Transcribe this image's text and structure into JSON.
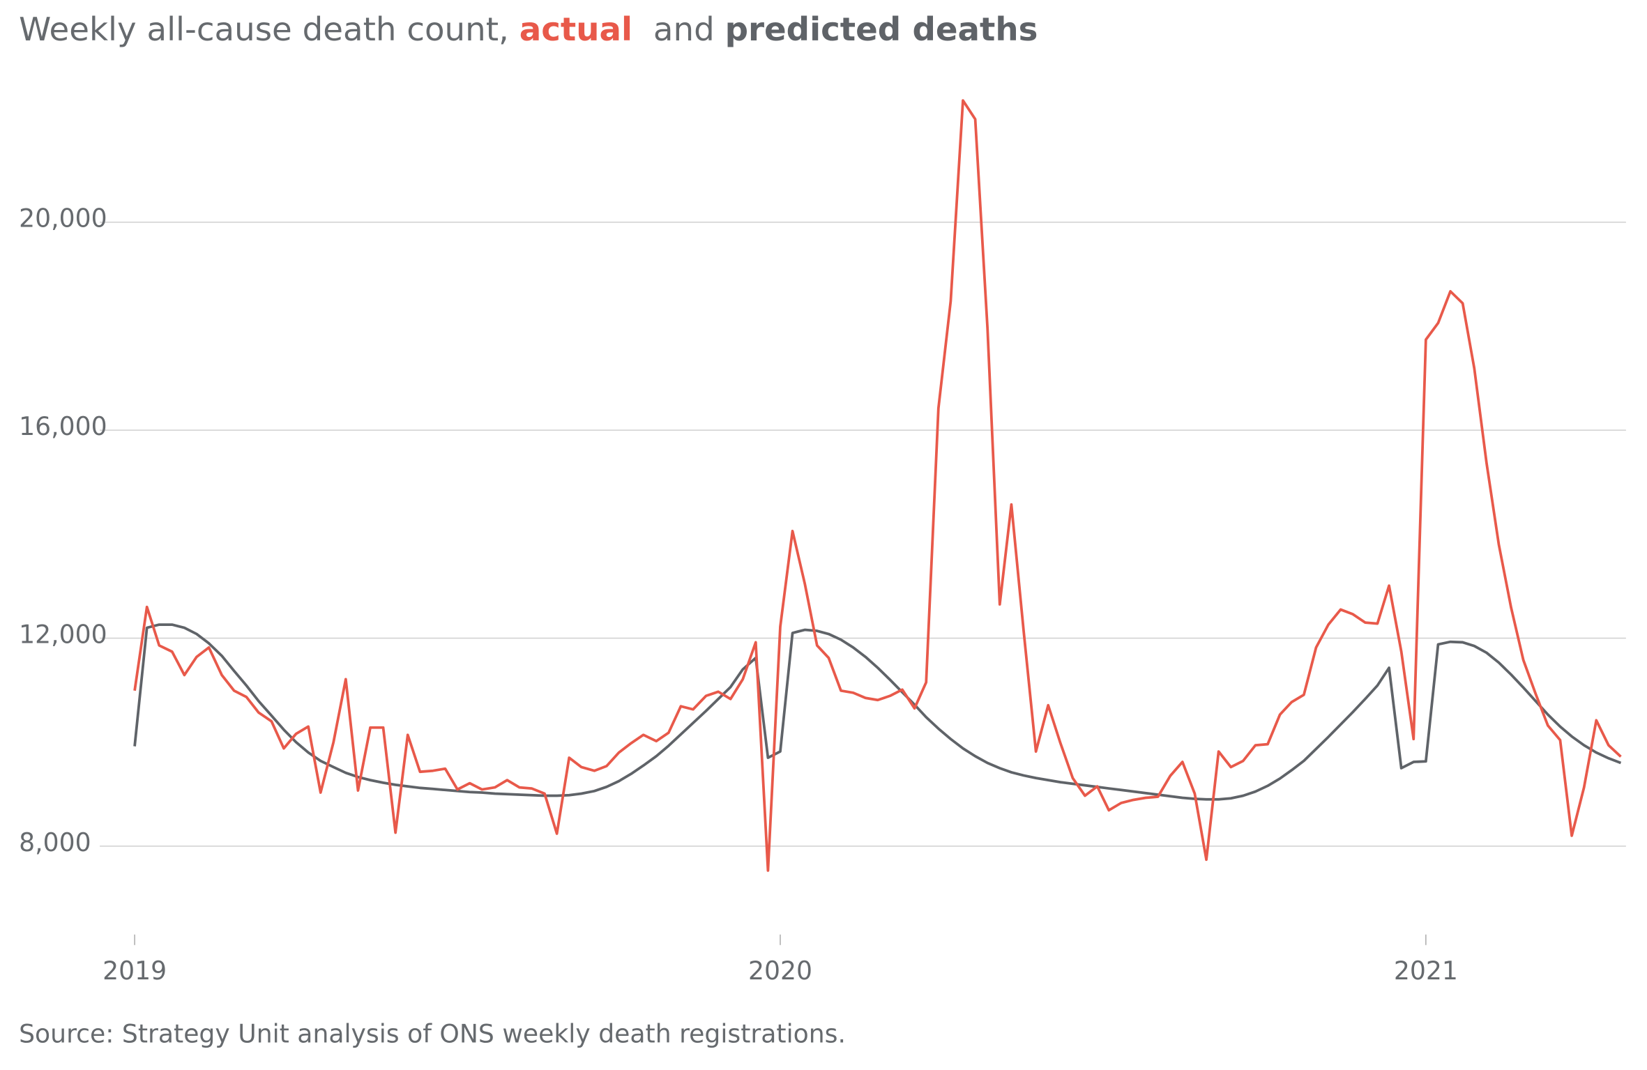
{
  "chart_data": {
    "type": "line",
    "title": "Weekly all-cause death count,",
    "title_joiner": "and",
    "source": "Source: Strategy Unit analysis of ONS weekly death registrations.",
    "x": [
      2019.0,
      2019.019,
      2019.038,
      2019.058,
      2019.077,
      2019.096,
      2019.115,
      2019.135,
      2019.154,
      2019.173,
      2019.192,
      2019.212,
      2019.231,
      2019.25,
      2019.269,
      2019.288,
      2019.308,
      2019.327,
      2019.346,
      2019.365,
      2019.385,
      2019.404,
      2019.423,
      2019.442,
      2019.462,
      2019.481,
      2019.5,
      2019.519,
      2019.538,
      2019.558,
      2019.577,
      2019.596,
      2019.615,
      2019.635,
      2019.654,
      2019.673,
      2019.692,
      2019.712,
      2019.731,
      2019.75,
      2019.769,
      2019.788,
      2019.808,
      2019.827,
      2019.846,
      2019.865,
      2019.885,
      2019.904,
      2019.923,
      2019.942,
      2019.962,
      2019.981,
      2020.0,
      2020.019,
      2020.038,
      2020.057,
      2020.075,
      2020.094,
      2020.113,
      2020.132,
      2020.151,
      2020.17,
      2020.189,
      2020.208,
      2020.226,
      2020.245,
      2020.264,
      2020.283,
      2020.302,
      2020.321,
      2020.34,
      2020.358,
      2020.377,
      2020.396,
      2020.415,
      2020.434,
      2020.453,
      2020.472,
      2020.491,
      2020.509,
      2020.528,
      2020.547,
      2020.566,
      2020.585,
      2020.604,
      2020.623,
      2020.642,
      2020.66,
      2020.679,
      2020.698,
      2020.717,
      2020.736,
      2020.755,
      2020.774,
      2020.792,
      2020.811,
      2020.83,
      2020.849,
      2020.868,
      2020.887,
      2020.906,
      2020.925,
      2020.943,
      2020.962,
      2020.981,
      2021.0,
      2021.019,
      2021.038,
      2021.057,
      2021.075,
      2021.094,
      2021.113,
      2021.132,
      2021.151,
      2021.17,
      2021.189,
      2021.208,
      2021.226,
      2021.245,
      2021.264,
      2021.283,
      2021.302
    ],
    "series": [
      {
        "name": "actual",
        "color": "#e8594a",
        "values": [
          10990,
          12600,
          11860,
          11740,
          11290,
          11640,
          11820,
          11290,
          10990,
          10870,
          10570,
          10400,
          9880,
          10160,
          10300,
          9030,
          10000,
          11210,
          9070,
          10280,
          10280,
          8260,
          10140,
          9430,
          9450,
          9490,
          9090,
          9210,
          9090,
          9130,
          9270,
          9130,
          9110,
          9010,
          8240,
          9700,
          9520,
          9450,
          9540,
          9800,
          9980,
          10140,
          10020,
          10180,
          10690,
          10630,
          10890,
          10970,
          10830,
          11210,
          11920,
          7530,
          12220,
          14060,
          13050,
          11860,
          11620,
          10990,
          10950,
          10850,
          10810,
          10890,
          11010,
          10650,
          11150,
          16420,
          18480,
          22340,
          21980,
          17960,
          12650,
          14570,
          12140,
          9820,
          10710,
          9980,
          9310,
          8970,
          9150,
          8690,
          8830,
          8890,
          8930,
          8950,
          9350,
          9620,
          9010,
          7740,
          9820,
          9520,
          9640,
          9940,
          9960,
          10530,
          10770,
          10910,
          11820,
          12260,
          12550,
          12460,
          12300,
          12280,
          13010,
          11740,
          10060,
          17740,
          18060,
          18670,
          18440,
          17190,
          15370,
          13800,
          12590,
          11580,
          10930,
          10320,
          10040,
          8200,
          9130,
          10420,
          9940,
          9720
        ]
      },
      {
        "name": "predicted deaths",
        "color": "#5f6368",
        "values": [
          9920,
          12200,
          12260,
          12260,
          12200,
          12080,
          11900,
          11660,
          11370,
          11090,
          10790,
          10510,
          10240,
          10000,
          9800,
          9640,
          9520,
          9410,
          9330,
          9270,
          9220,
          9180,
          9150,
          9120,
          9100,
          9080,
          9060,
          9040,
          9030,
          9010,
          9000,
          8990,
          8980,
          8970,
          8970,
          8980,
          9010,
          9060,
          9140,
          9250,
          9390,
          9550,
          9730,
          9930,
          10150,
          10370,
          10600,
          10830,
          11060,
          11400,
          11620,
          9700,
          9820,
          12100,
          12160,
          12140,
          12080,
          11970,
          11820,
          11640,
          11430,
          11200,
          10960,
          10720,
          10480,
          10260,
          10060,
          9880,
          9730,
          9600,
          9500,
          9420,
          9360,
          9310,
          9270,
          9230,
          9200,
          9170,
          9140,
          9110,
          9080,
          9050,
          9020,
          8990,
          8960,
          8930,
          8910,
          8900,
          8900,
          8920,
          8970,
          9050,
          9160,
          9300,
          9460,
          9640,
          9870,
          10100,
          10340,
          10580,
          10830,
          11090,
          11430,
          9500,
          9620,
          9630,
          11880,
          11930,
          11920,
          11850,
          11720,
          11530,
          11300,
          11050,
          10790,
          10530,
          10300,
          10110,
          9940,
          9800,
          9690,
          9600
        ]
      }
    ],
    "xlim": [
      2018.946,
      2021.31
    ],
    "xticks": [
      2019,
      2020,
      2021
    ],
    "ylim": [
      6300,
      23000
    ],
    "yticks": [
      {
        "value": 8000,
        "label": "8,000"
      },
      {
        "value": 12000,
        "label": "12,000"
      },
      {
        "value": 16000,
        "label": "16,000"
      },
      {
        "value": 20000,
        "label": "20,000"
      }
    ],
    "grid": true
  }
}
